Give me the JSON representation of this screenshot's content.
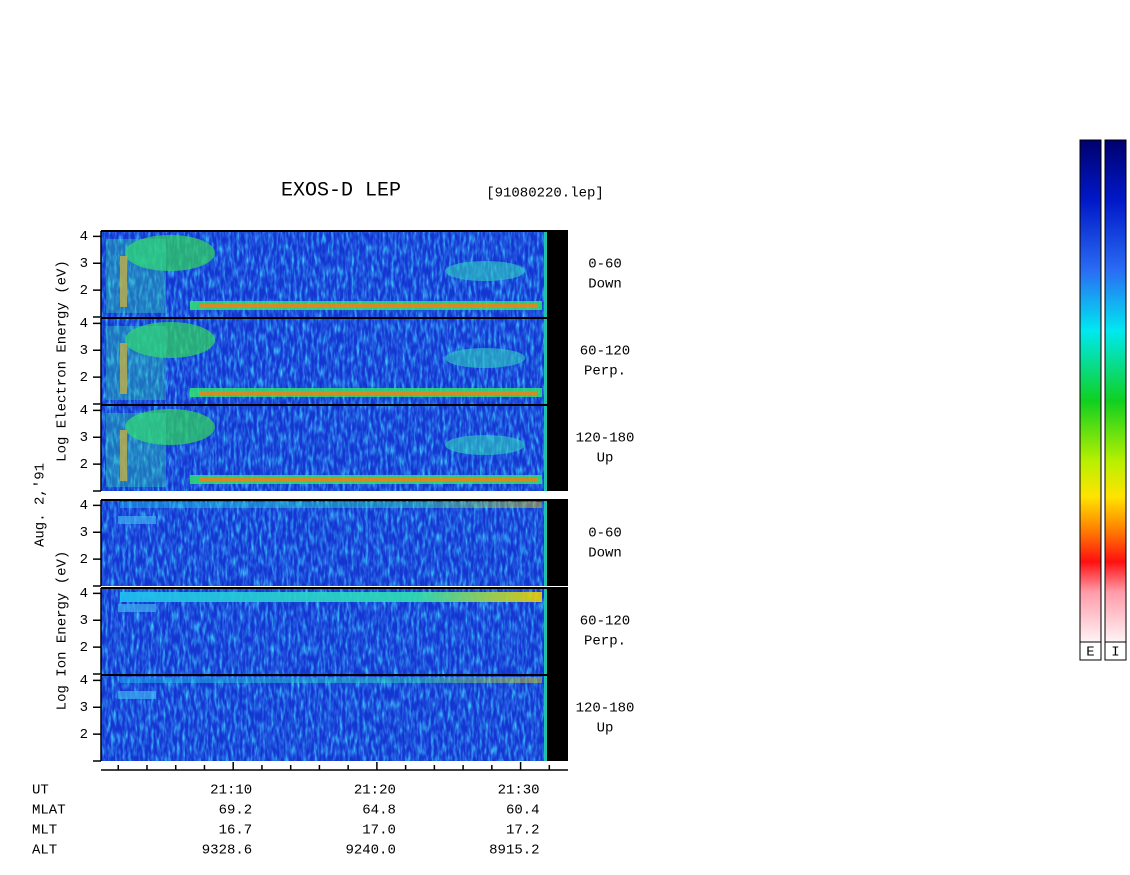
{
  "chart_data": {
    "type": "spectrogram",
    "title": "EXOS-D LEP",
    "subtitle": "[91080220.lep]",
    "date": "Aug. 2,'91",
    "groups": [
      {
        "ylabel": "Log Electron Energy (eV)",
        "channels": [
          [
            "0-60",
            "Down"
          ],
          [
            "60-120",
            "Perp."
          ],
          [
            "120-180",
            "Up"
          ]
        ]
      },
      {
        "ylabel": "Log Ion Energy (eV)",
        "channels": [
          [
            "0-60",
            "Down"
          ],
          [
            "60-120",
            "Perp."
          ],
          [
            "120-180",
            "Up"
          ]
        ]
      }
    ],
    "ylim": [
      1,
      4.2
    ],
    "yticks": [
      2,
      3,
      4
    ],
    "xlabel": "UT",
    "xlim": [
      1260.8,
      1293.3
    ],
    "xticks": [
      {
        "value": 1270,
        "label": "21:10"
      },
      {
        "value": 1280,
        "label": "21:20"
      },
      {
        "value": 1290,
        "label": "21:30"
      }
    ],
    "xminorticks": [
      1262,
      1264,
      1266,
      1268,
      1272,
      1274,
      1276,
      1278,
      1282,
      1284,
      1286,
      1288,
      1292
    ],
    "ephemeris": [
      {
        "name": "MLAT",
        "values": [
          "69.2",
          "64.8",
          "60.4"
        ]
      },
      {
        "name": "MLT",
        "values": [
          "16.7",
          "17.0",
          "17.2"
        ]
      },
      {
        "name": "ALT",
        "values": [
          "9328.6",
          "9240.0",
          "8915.2"
        ]
      }
    ],
    "colorbar_labels": [
      "E",
      "I"
    ]
  }
}
